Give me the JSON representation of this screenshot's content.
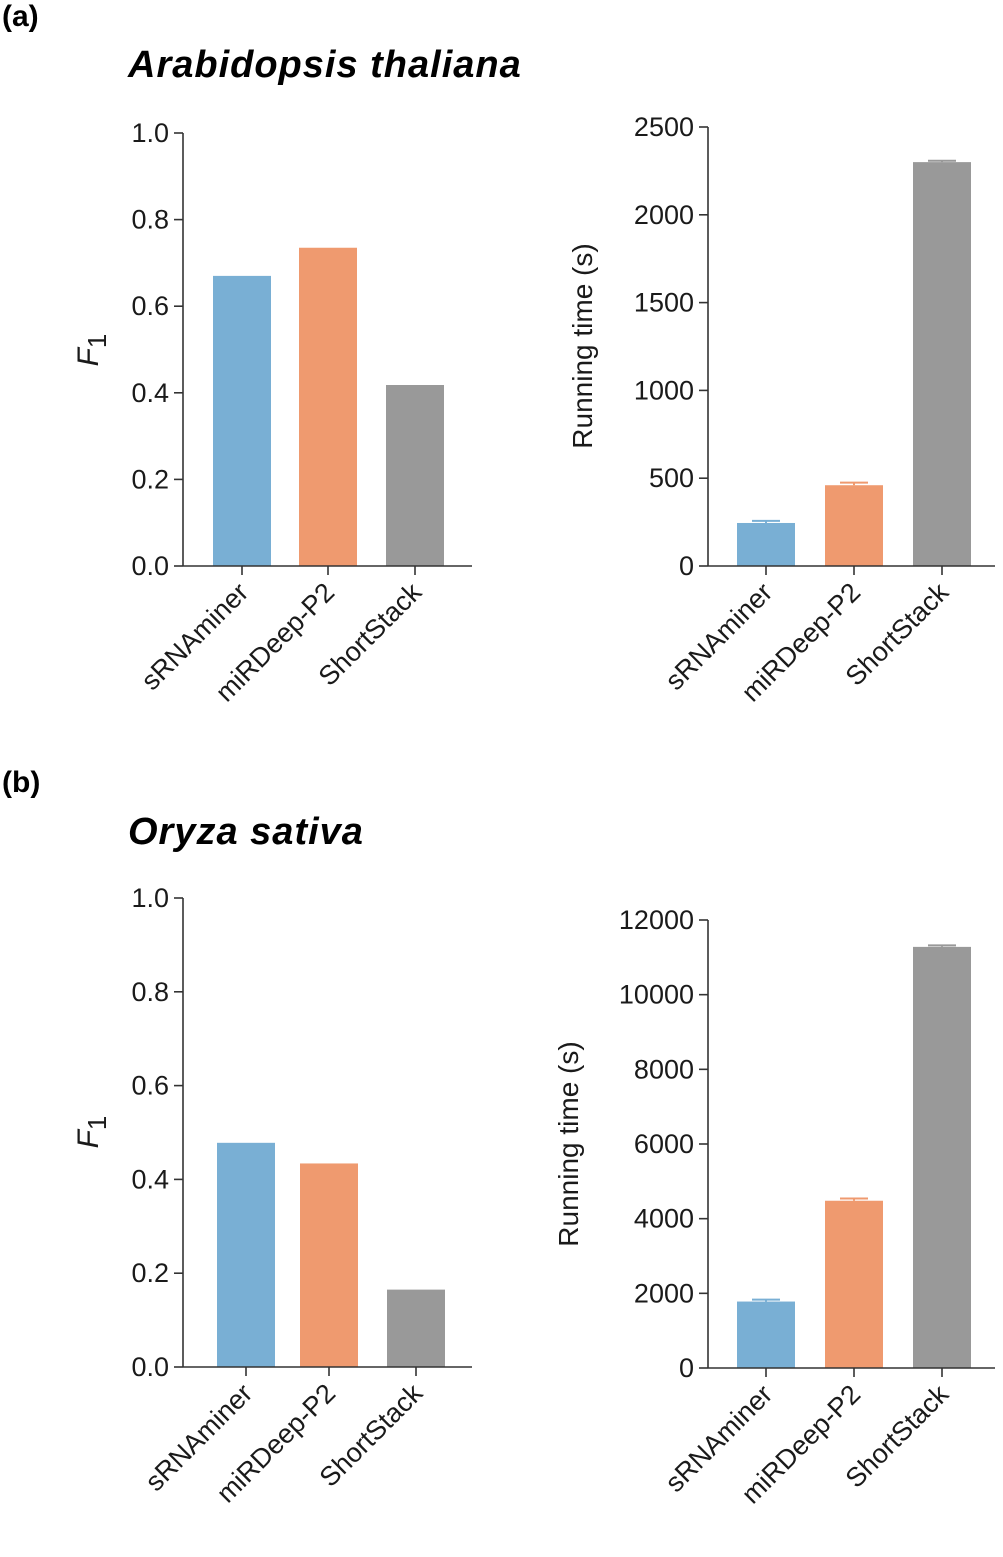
{
  "panels": {
    "a": {
      "letter": "(a)",
      "species": "Arabidopsis thaliana"
    },
    "b": {
      "letter": "(b)",
      "species": "Oryza sativa"
    }
  },
  "chart_data": [
    {
      "id": "a-f1",
      "type": "bar",
      "categories": [
        "sRNAminer",
        "miRDeep-P2",
        "ShortStack"
      ],
      "values": [
        0.67,
        0.735,
        0.418
      ],
      "colors": [
        "#79afd4",
        "#ef9a6f",
        "#999999"
      ],
      "title": "",
      "xlabel": "",
      "ylabel": "F",
      "ylabel_sub": "1",
      "ylim": [
        0,
        1.0
      ],
      "yticks": [
        0.0,
        0.2,
        0.4,
        0.6,
        0.8,
        1.0
      ],
      "ytick_labels": [
        "0.0",
        "0.2",
        "0.4",
        "0.6",
        "0.8",
        "1.0"
      ],
      "grid": false
    },
    {
      "id": "a-time",
      "type": "bar",
      "categories": [
        "sRNAminer",
        "miRDeep-P2",
        "ShortStack"
      ],
      "values": [
        245,
        460,
        2300
      ],
      "errors": [
        12,
        15,
        8
      ],
      "colors": [
        "#79afd4",
        "#ef9a6f",
        "#999999"
      ],
      "title": "",
      "xlabel": "",
      "ylabel": "Running time (s)",
      "ylim": [
        0,
        2500
      ],
      "yticks": [
        0,
        500,
        1000,
        1500,
        2000,
        2500
      ],
      "ytick_labels": [
        "0",
        "500",
        "1000",
        "1500",
        "2000",
        "2500"
      ],
      "grid": false
    },
    {
      "id": "b-f1",
      "type": "bar",
      "categories": [
        "sRNAminer",
        "miRDeep-P2",
        "ShortStack"
      ],
      "values": [
        0.478,
        0.434,
        0.165
      ],
      "colors": [
        "#79afd4",
        "#ef9a6f",
        "#999999"
      ],
      "title": "",
      "xlabel": "",
      "ylabel": "F",
      "ylabel_sub": "1",
      "ylim": [
        0,
        1.0
      ],
      "yticks": [
        0.0,
        0.2,
        0.4,
        0.6,
        0.8,
        1.0
      ],
      "ytick_labels": [
        "0.0",
        "0.2",
        "0.4",
        "0.6",
        "0.8",
        "1.0"
      ],
      "grid": false
    },
    {
      "id": "b-time",
      "type": "bar",
      "categories": [
        "sRNAminer",
        "miRDeep-P2",
        "ShortStack"
      ],
      "values": [
        1780,
        4480,
        11280
      ],
      "errors": [
        50,
        60,
        40
      ],
      "colors": [
        "#79afd4",
        "#ef9a6f",
        "#999999"
      ],
      "title": "",
      "xlabel": "",
      "ylabel": "Running time (s)",
      "ylim": [
        0,
        12000
      ],
      "yticks": [
        0,
        2000,
        4000,
        6000,
        8000,
        10000,
        12000
      ],
      "ytick_labels": [
        "0",
        "2000",
        "4000",
        "6000",
        "8000",
        "10000",
        "12000"
      ],
      "grid": false
    }
  ]
}
